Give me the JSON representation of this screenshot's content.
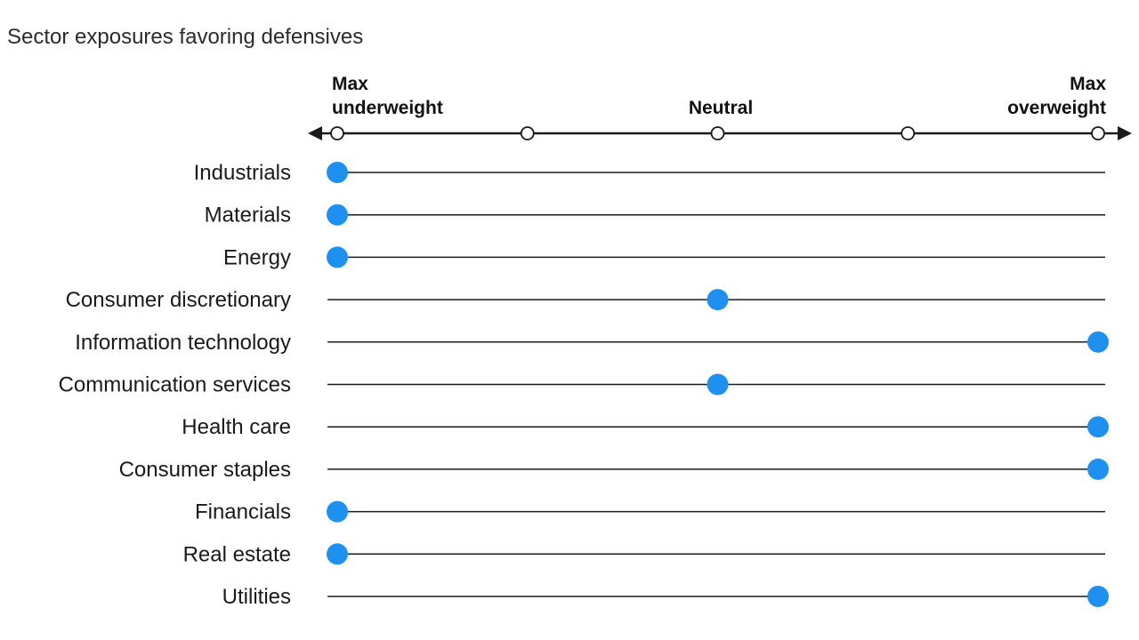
{
  "chart_data": {
    "type": "scatter",
    "title": "Sector exposures favoring defensives",
    "scale_labels": {
      "left_line1": "Max",
      "left_line2": "underweight",
      "middle": "Neutral",
      "right_line1": "Max",
      "right_line2": "overweight"
    },
    "scale_steps": 5,
    "categories": [
      "Industrials",
      "Materials",
      "Energy",
      "Consumer discretionary",
      "Information technology",
      "Communication services",
      "Health care",
      "Consumer staples",
      "Financials",
      "Real estate",
      "Utilities"
    ],
    "values": [
      -2,
      -2,
      -2,
      0,
      2,
      0,
      2,
      2,
      -2,
      -2,
      2
    ],
    "xlim": [
      -2,
      2
    ],
    "grid": false,
    "legend": "none"
  },
  "colors": {
    "marker": "#1e90f0",
    "line": "#1a1a1a"
  }
}
